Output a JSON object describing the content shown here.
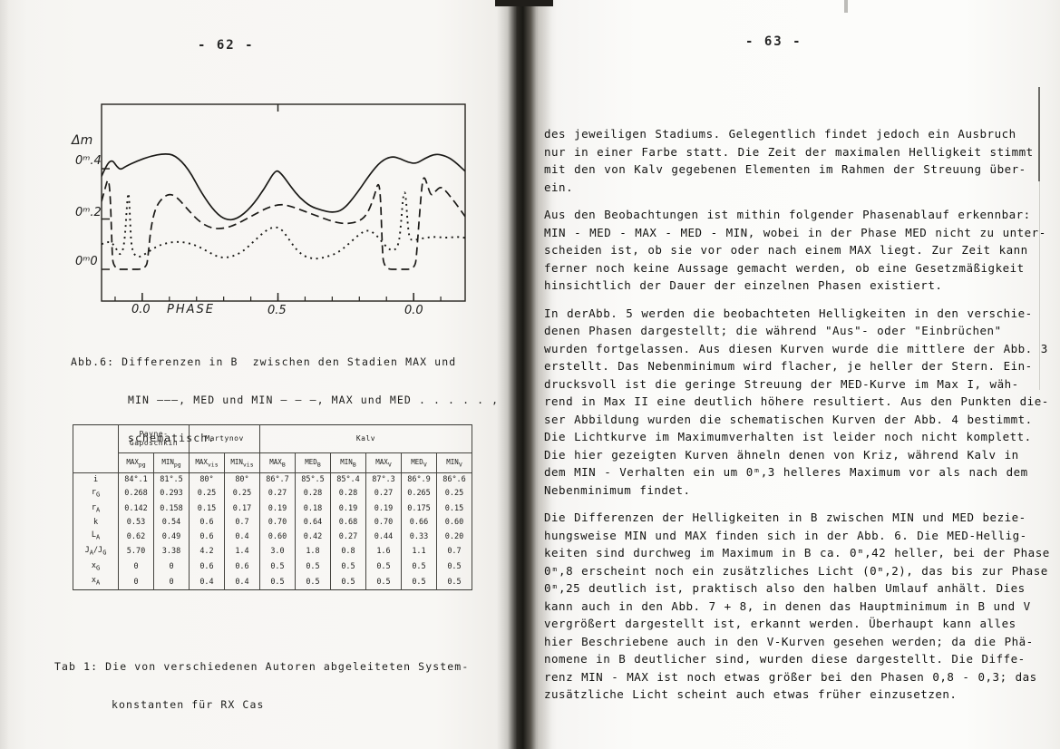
{
  "page_spread": {
    "left_page_number": "- 62 -",
    "right_page_number": "- 63 -"
  },
  "chart_data": {
    "type": "line",
    "title": "Differenzen in B zwischen den Stadien MAX/MED/MIN, schematisch (Abb. 6)",
    "ylabel": "Δm",
    "xlabel": "PHASE",
    "grid": false,
    "xlim": [
      -0.15,
      1.19
    ],
    "ylim": [
      -0.126,
      0.656
    ],
    "x_tick_phases": [
      0,
      0.5,
      1.0
    ],
    "x_tick_labels": [
      "0.0",
      "0.5",
      "0.0"
    ],
    "y_tick_values": [
      0.4,
      0.2,
      0.0
    ],
    "y_tick_labels": [
      "0ᵐ.4",
      "0ᵐ.2",
      "0ᵐ0"
    ],
    "legend_position": "caption",
    "series": [
      {
        "name": "MAX und MIN",
        "style": "solid",
        "points": [
          [
            -0.15,
            0.37
          ],
          [
            -0.13,
            0.42
          ],
          [
            -0.11,
            0.435
          ],
          [
            -0.095,
            0.41
          ],
          [
            -0.08,
            0.395
          ],
          [
            -0.06,
            0.41
          ],
          [
            -0.02,
            0.43
          ],
          [
            0.03,
            0.45
          ],
          [
            0.08,
            0.46
          ],
          [
            0.12,
            0.455
          ],
          [
            0.17,
            0.4
          ],
          [
            0.22,
            0.3
          ],
          [
            0.27,
            0.225
          ],
          [
            0.31,
            0.195
          ],
          [
            0.35,
            0.2
          ],
          [
            0.4,
            0.245
          ],
          [
            0.45,
            0.32
          ],
          [
            0.49,
            0.395
          ],
          [
            0.51,
            0.385
          ],
          [
            0.55,
            0.325
          ],
          [
            0.58,
            0.285
          ],
          [
            0.62,
            0.25
          ],
          [
            0.66,
            0.235
          ],
          [
            0.7,
            0.225
          ],
          [
            0.74,
            0.235
          ],
          [
            0.79,
            0.3
          ],
          [
            0.84,
            0.38
          ],
          [
            0.88,
            0.43
          ],
          [
            0.92,
            0.45
          ],
          [
            0.95,
            0.44
          ],
          [
            0.98,
            0.425
          ],
          [
            1.01,
            0.42
          ],
          [
            1.04,
            0.44
          ],
          [
            1.08,
            0.46
          ],
          [
            1.12,
            0.45
          ],
          [
            1.15,
            0.43
          ],
          [
            1.19,
            0.39
          ]
        ]
      },
      {
        "name": "MED und MIN",
        "style": "dashed",
        "points": [
          [
            -0.15,
            0.27
          ],
          [
            -0.135,
            0.33
          ],
          [
            -0.125,
            0.365
          ],
          [
            -0.118,
            0.3
          ],
          [
            -0.112,
            0.1
          ],
          [
            -0.108,
            0.0
          ],
          [
            -0.05,
            0.0
          ],
          [
            0.015,
            0.0
          ],
          [
            0.022,
            0.06
          ],
          [
            0.032,
            0.17
          ],
          [
            0.05,
            0.25
          ],
          [
            0.08,
            0.29
          ],
          [
            0.105,
            0.3
          ],
          [
            0.13,
            0.285
          ],
          [
            0.17,
            0.235
          ],
          [
            0.21,
            0.19
          ],
          [
            0.25,
            0.165
          ],
          [
            0.29,
            0.16
          ],
          [
            0.34,
            0.175
          ],
          [
            0.4,
            0.21
          ],
          [
            0.46,
            0.245
          ],
          [
            0.51,
            0.26
          ],
          [
            0.55,
            0.25
          ],
          [
            0.6,
            0.23
          ],
          [
            0.65,
            0.21
          ],
          [
            0.7,
            0.19
          ],
          [
            0.75,
            0.18
          ],
          [
            0.8,
            0.19
          ],
          [
            0.83,
            0.22
          ],
          [
            0.855,
            0.29
          ],
          [
            0.87,
            0.35
          ],
          [
            0.878,
            0.3
          ],
          [
            0.884,
            0.1
          ],
          [
            0.89,
            0.0
          ],
          [
            0.95,
            0.0
          ],
          [
            1.005,
            0.0
          ],
          [
            1.012,
            0.07
          ],
          [
            1.022,
            0.22
          ],
          [
            1.032,
            0.35
          ],
          [
            1.04,
            0.37
          ],
          [
            1.052,
            0.33
          ],
          [
            1.065,
            0.29
          ],
          [
            1.08,
            0.31
          ],
          [
            1.1,
            0.33
          ],
          [
            1.12,
            0.31
          ],
          [
            1.15,
            0.27
          ],
          [
            1.19,
            0.21
          ]
        ]
      },
      {
        "name": "MAX und MED",
        "style": "dotted",
        "points": [
          [
            -0.15,
            0.1
          ],
          [
            -0.12,
            0.115
          ],
          [
            -0.1,
            0.09
          ],
          [
            -0.08,
            0.05
          ],
          [
            -0.065,
            0.1
          ],
          [
            -0.055,
            0.28
          ],
          [
            -0.05,
            0.315
          ],
          [
            -0.045,
            0.2
          ],
          [
            -0.04,
            0.08
          ],
          [
            -0.02,
            0.045
          ],
          [
            0.01,
            0.06
          ],
          [
            0.05,
            0.09
          ],
          [
            0.09,
            0.105
          ],
          [
            0.13,
            0.11
          ],
          [
            0.17,
            0.105
          ],
          [
            0.21,
            0.09
          ],
          [
            0.25,
            0.065
          ],
          [
            0.29,
            0.045
          ],
          [
            0.33,
            0.05
          ],
          [
            0.37,
            0.07
          ],
          [
            0.41,
            0.11
          ],
          [
            0.45,
            0.15
          ],
          [
            0.48,
            0.168
          ],
          [
            0.51,
            0.165
          ],
          [
            0.54,
            0.12
          ],
          [
            0.57,
            0.075
          ],
          [
            0.6,
            0.05
          ],
          [
            0.64,
            0.04
          ],
          [
            0.68,
            0.05
          ],
          [
            0.72,
            0.065
          ],
          [
            0.76,
            0.1
          ],
          [
            0.8,
            0.14
          ],
          [
            0.83,
            0.158
          ],
          [
            0.86,
            0.14
          ],
          [
            0.89,
            0.1
          ],
          [
            0.92,
            0.07
          ],
          [
            0.945,
            0.09
          ],
          [
            0.955,
            0.2
          ],
          [
            0.962,
            0.3
          ],
          [
            0.97,
            0.31
          ],
          [
            0.978,
            0.18
          ],
          [
            0.985,
            0.12
          ],
          [
            1.0,
            0.115
          ],
          [
            1.04,
            0.125
          ],
          [
            1.08,
            0.13
          ],
          [
            1.12,
            0.125
          ],
          [
            1.16,
            0.13
          ],
          [
            1.19,
            0.125
          ]
        ]
      }
    ]
  },
  "figure_caption": {
    "lines": [
      "Abb.6: Differenzen in B  zwischen den Stadien MAX und",
      "MIN ———, MED und MIN — — —, MAX und MED . . . . . ,",
      "schematisch."
    ]
  },
  "table": {
    "caption_lines": [
      "Tab 1: Die von verschiedenen Autoren abgeleiteten System-",
      "konstanten für RX Cas"
    ],
    "groups": [
      {
        "label": "",
        "span": 1
      },
      {
        "label": "Payne-\nGaposchkin",
        "span": 2
      },
      {
        "label": "Martynov",
        "span": 2
      },
      {
        "label": "Kalv",
        "span": 6
      }
    ],
    "columns": [
      "MAX_pg",
      "MIN_pg",
      "MAX_vis",
      "MIN_vis",
      "MAX_B",
      "MED_B",
      "MIN_B",
      "MAX_V",
      "MED_V",
      "MIN_V"
    ],
    "rows": [
      {
        "label": "i",
        "values": [
          "84°.1",
          "81°.5",
          "80°",
          "80°",
          "86°.7",
          "85°.5",
          "85°.4",
          "87°.3",
          "86°.9",
          "86°.6"
        ]
      },
      {
        "label": "r_G",
        "values": [
          "0.268",
          "0.293",
          "0.25",
          "0.25",
          "0.27",
          "0.28",
          "0.28",
          "0.27",
          "0.265",
          "0.25"
        ]
      },
      {
        "label": "r_A",
        "values": [
          "0.142",
          "0.158",
          "0.15",
          "0.17",
          "0.19",
          "0.18",
          "0.19",
          "0.19",
          "0.175",
          "0.15"
        ]
      },
      {
        "label": "k",
        "values": [
          "0.53",
          "0.54",
          "0.6",
          "0.7",
          "0.70",
          "0.64",
          "0.68",
          "0.70",
          "0.66",
          "0.60"
        ]
      },
      {
        "label": "L_A",
        "values": [
          "0.62",
          "0.49",
          "0.6",
          "0.4",
          "0.60",
          "0.42",
          "0.27",
          "0.44",
          "0.33",
          "0.20"
        ]
      },
      {
        "label": "J_A/J_G",
        "values": [
          "5.70",
          "3.38",
          "4.2",
          "1.4",
          "3.0",
          "1.8",
          "0.8",
          "1.6",
          "1.1",
          "0.7"
        ]
      },
      {
        "label": "x_G",
        "values": [
          "0",
          "0",
          "0.6",
          "0.6",
          "0.5",
          "0.5",
          "0.5",
          "0.5",
          "0.5",
          "0.5"
        ]
      },
      {
        "label": "x_A",
        "values": [
          "0",
          "0",
          "0.4",
          "0.4",
          "0.5",
          "0.5",
          "0.5",
          "0.5",
          "0.5",
          "0.5"
        ]
      }
    ]
  },
  "right_page": {
    "paragraphs": [
      [
        "des jeweiligen Stadiums. Gelegentlich findet jedoch ein Ausbruch",
        "nur in einer Farbe statt. Die Zeit der maximalen Helligkeit stimmt",
        "mit den von Kalv gegebenen Elementen im Rahmen der Streuung über-",
        "ein."
      ],
      [
        "Aus den Beobachtungen ist mithin folgender Phasenablauf erkennbar:",
        "MIN - MED - MAX - MED - MIN, wobei in der Phase MED nicht zu unter-",
        "scheiden ist, ob sie vor oder nach einem MAX liegt. Zur Zeit kann",
        "ferner noch keine Aussage gemacht werden, ob eine Gesetzmäßigkeit",
        "hinsichtlich der Dauer der einzelnen Phasen existiert."
      ],
      [
        "In derAbb. 5 werden die beobachteten Helligkeiten in den verschie-",
        "denen Phasen dargestellt; die während \"Aus\"- oder \"Einbrüchen\"",
        "wurden fortgelassen. Aus diesen Kurven wurde die mittlere der Abb. 3",
        "erstellt. Das Nebenminimum wird flacher, je heller der Stern. Ein-",
        "drucksvoll ist die geringe Streuung der MED-Kurve im Max I, wäh-",
        "rend in Max II eine deutlich höhere resultiert. Aus den Punkten die-",
        "ser Abbildung wurden die schematischen Kurven der Abb. 4 bestimmt.",
        "Die Lichtkurve im Maximumverhalten ist leider noch nicht komplett.",
        "Die hier gezeigten Kurven ähneln denen von Kriz, während Kalv in",
        "dem MIN - Verhalten ein um 0ᵐ,3 helleres Maximum vor als nach dem",
        "Nebenminimum findet."
      ],
      [
        "Die Differenzen der Helligkeiten in B zwischen MIN und MED bezie-",
        "hungsweise MIN und MAX finden sich in der Abb. 6. Die MED-Hellig-",
        "keiten sind durchweg im Maximum in B ca. 0ᵐ,42 heller, bei der Phase",
        "0ᵐ,8 erscheint noch ein zusätzliches Licht (0ᵐ,2), das bis zur Phase",
        "0ᵐ,25 deutlich ist, praktisch also den halben Umlauf anhält. Dies",
        "kann auch in den Abb. 7 + 8, in denen das Hauptminimum in B und V",
        "vergrößert dargestellt ist, erkannt werden. Überhaupt kann alles",
        "hier Beschriebene auch in den V-Kurven gesehen werden; da die Phä-",
        "nomene in B deutlicher sind, wurden diese dargestellt. Die Diffe-",
        "renz MIN - MAX ist noch etwas größer bei den Phasen 0,8 - 0,3; das",
        "zusätzliche Licht scheint auch etwas früher einzusetzen."
      ]
    ]
  }
}
